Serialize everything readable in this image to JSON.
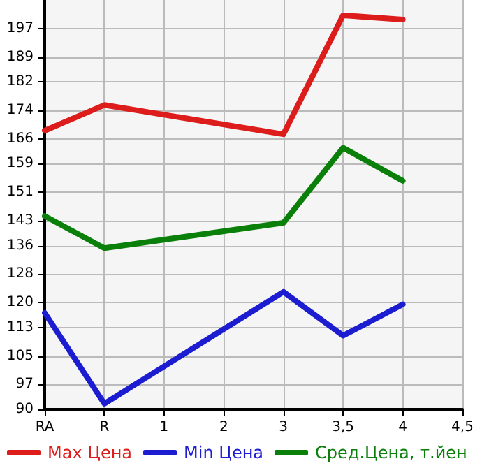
{
  "chart_data": {
    "type": "line",
    "categories": [
      "RA",
      "R",
      "1",
      "2",
      "3",
      "3,5",
      "4",
      "4,5"
    ],
    "series": [
      {
        "name": "Max Цена",
        "color": "#dd1c1c",
        "values": [
          168.3,
          175.5,
          null,
          null,
          167.3,
          200.7,
          199.5,
          null
        ]
      },
      {
        "name": "Min Цена",
        "color": "#1c1cd0",
        "values": [
          117.1,
          91.6,
          null,
          null,
          123,
          110.7,
          119.5,
          null
        ]
      },
      {
        "name": "Сред.Цена, т.йен",
        "color": "#0a800a",
        "values": [
          144.3,
          135.3,
          null,
          null,
          142.4,
          163.5,
          154.2,
          null
        ]
      }
    ],
    "ylim": [
      90,
      205
    ],
    "yticks": [
      90,
      97,
      105,
      113,
      120,
      128,
      136,
      143,
      151,
      159,
      166,
      174,
      182,
      189,
      197
    ],
    "grid": true,
    "legend": "bottom",
    "marker": "none",
    "line_style": "solid"
  }
}
